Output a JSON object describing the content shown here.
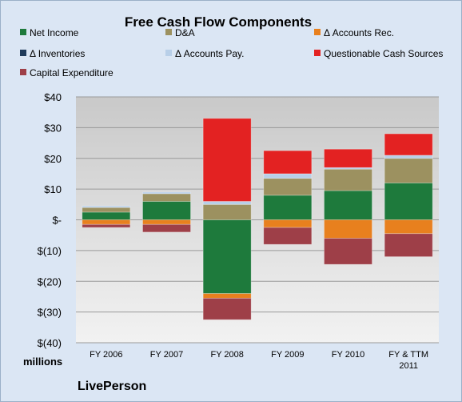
{
  "chart_data": {
    "type": "bar",
    "stacked": true,
    "title": "Free Cash Flow Components",
    "categories": [
      "FY 2006",
      "FY 2007",
      "FY 2008",
      "FY 2009",
      "FY 2010",
      "FY & TTM 2011"
    ],
    "ylim": [
      -40,
      40
    ],
    "yticks": [
      40,
      30,
      20,
      10,
      0,
      -10,
      -20,
      -30,
      -40
    ],
    "ytick_labels": [
      "$40",
      "$30",
      "$20",
      "$10",
      "$-",
      "$(10)",
      "$(20)",
      "$(30)",
      "$(40)"
    ],
    "units_label": "millions",
    "source_label": "LivePerson",
    "grid": true,
    "legend_position": "top",
    "series": [
      {
        "name": "Net Income",
        "color": "#1e7a3c",
        "values": [
          2.5,
          6,
          -24,
          8,
          9.5,
          12
        ]
      },
      {
        "name": "D&A",
        "color": "#9c9160",
        "values": [
          1.5,
          2.5,
          5,
          5.5,
          7,
          8
        ]
      },
      {
        "name": "Δ Accounts Rec.",
        "color": "#e8801e",
        "values": [
          -1.5,
          -1.5,
          -1.5,
          -2.5,
          -6,
          -4.5
        ]
      },
      {
        "name": "Δ Inventories",
        "color": "#1f3b5a",
        "values": [
          0,
          0,
          0,
          0,
          0,
          0
        ]
      },
      {
        "name": "Δ Accounts Pay.",
        "color": "#b8cfe8",
        "values": [
          0.5,
          0.5,
          1,
          1.5,
          0.5,
          1
        ]
      },
      {
        "name": "Questionable Cash Sources",
        "color": "#e32222",
        "values": [
          0,
          0,
          27,
          7.5,
          6,
          7
        ]
      },
      {
        "name": "Capital Expenditure",
        "color": "#9e3f48",
        "values": [
          -1,
          -2.5,
          -7,
          -5.5,
          -8.5,
          -7.5
        ]
      }
    ]
  }
}
